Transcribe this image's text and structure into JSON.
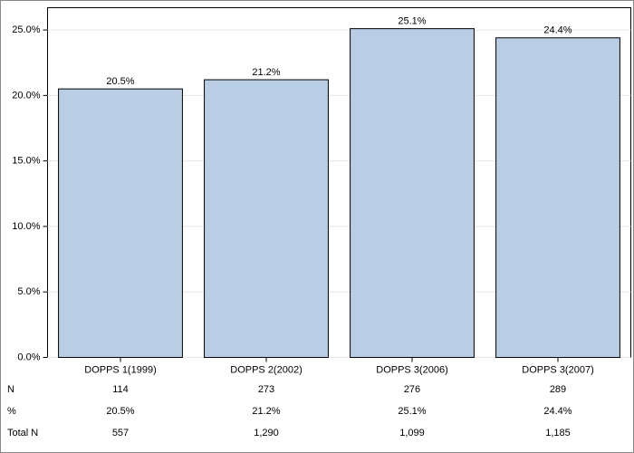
{
  "chart_data": {
    "type": "bar",
    "categories": [
      "DOPPS 1(1999)",
      "DOPPS 2(2002)",
      "DOPPS 3(2006)",
      "DOPPS 3(2007)"
    ],
    "values": [
      20.5,
      21.2,
      25.1,
      24.4
    ],
    "value_labels": [
      "20.5%",
      "21.2%",
      "25.1%",
      "24.4%"
    ],
    "color": "#b9cde5",
    "ylim": [
      0,
      26.7
    ],
    "yticks": [
      {
        "value": 0,
        "label": "0.0%"
      },
      {
        "value": 5,
        "label": "5.0%"
      },
      {
        "value": 10,
        "label": "10.0%"
      },
      {
        "value": 15,
        "label": "15.0%"
      },
      {
        "value": 20,
        "label": "20.0%"
      },
      {
        "value": 25,
        "label": "25.0%"
      }
    ],
    "grid": true,
    "table": {
      "rows": [
        {
          "label": "N",
          "cells": [
            "114",
            "273",
            "276",
            "289"
          ]
        },
        {
          "label": "%",
          "cells": [
            "20.5%",
            "21.2%",
            "25.1%",
            "24.4%"
          ]
        },
        {
          "label": "Total N",
          "cells": [
            "557",
            "1,290",
            "1,099",
            "1,185"
          ]
        }
      ]
    }
  }
}
